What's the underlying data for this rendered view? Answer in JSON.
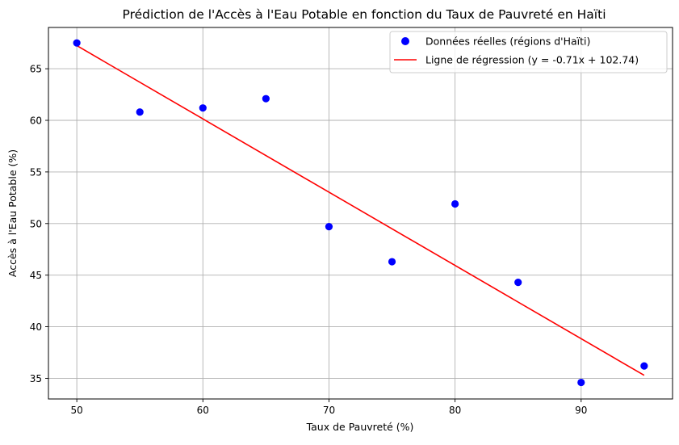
{
  "chart_data": {
    "type": "scatter",
    "title": "Prédiction de l'Accès à l'Eau Potable en fonction du Taux de Pauvreté en Haïti",
    "xlabel": "Taux de Pauvreté (%)",
    "ylabel": "Accès à l'Eau Potable (%)",
    "xlim": [
      47.75,
      97.25
    ],
    "ylim": [
      33.0,
      69.0
    ],
    "xticks": [
      50,
      60,
      70,
      80,
      90
    ],
    "yticks": [
      35,
      40,
      45,
      50,
      55,
      60,
      65
    ],
    "grid": true,
    "legend_position": "top-right",
    "series": [
      {
        "name": "Données réelles (régions d'Haïti)",
        "kind": "scatter",
        "color": "#0000ff",
        "x": [
          50,
          55,
          60,
          65,
          70,
          75,
          80,
          85,
          90,
          95
        ],
        "y": [
          67.5,
          60.8,
          61.2,
          62.1,
          49.7,
          46.3,
          51.9,
          44.3,
          34.6,
          36.2
        ]
      },
      {
        "name": "Ligne de régression (y = -0.71x + 102.74)",
        "kind": "line",
        "color": "#ff0000",
        "x": [
          50,
          95
        ],
        "y": [
          67.24,
          35.29
        ]
      }
    ]
  }
}
